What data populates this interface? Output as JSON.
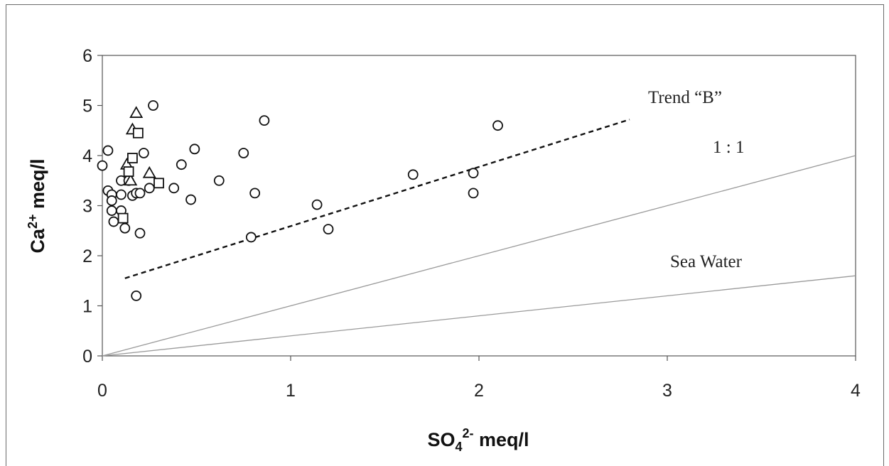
{
  "chart_data": {
    "type": "scatter",
    "xlabel": {
      "base": "SO",
      "sub": "4",
      "sup": "2-",
      "unit": " meq/l"
    },
    "ylabel": {
      "base": "Ca",
      "sup": "2+",
      "unit": " meq/l"
    },
    "xlim": [
      0,
      4
    ],
    "ylim": [
      0,
      6
    ],
    "x_ticks": [
      "0",
      "1",
      "2",
      "3",
      "4"
    ],
    "y_ticks": [
      "0",
      "1",
      "2",
      "3",
      "4",
      "5",
      "6"
    ],
    "grid": false,
    "series": [
      {
        "marker": "circle",
        "points": [
          [
            0.0,
            3.8
          ],
          [
            0.03,
            4.1
          ],
          [
            0.03,
            3.3
          ],
          [
            0.05,
            3.22
          ],
          [
            0.05,
            3.1
          ],
          [
            0.05,
            2.9
          ],
          [
            0.06,
            2.68
          ],
          [
            0.1,
            3.5
          ],
          [
            0.1,
            3.22
          ],
          [
            0.1,
            2.9
          ],
          [
            0.12,
            2.55
          ],
          [
            0.14,
            3.5
          ],
          [
            0.16,
            3.2
          ],
          [
            0.18,
            3.25
          ],
          [
            0.18,
            1.2
          ],
          [
            0.2,
            3.25
          ],
          [
            0.2,
            2.45
          ],
          [
            0.22,
            4.05
          ],
          [
            0.25,
            3.35
          ],
          [
            0.27,
            5.0
          ],
          [
            0.38,
            3.35
          ],
          [
            0.42,
            3.82
          ],
          [
            0.47,
            3.12
          ],
          [
            0.49,
            4.13
          ],
          [
            0.62,
            3.5
          ],
          [
            0.75,
            4.05
          ],
          [
            0.79,
            2.37
          ],
          [
            0.81,
            3.25
          ],
          [
            0.86,
            4.7
          ],
          [
            1.14,
            3.02
          ],
          [
            1.2,
            2.53
          ],
          [
            1.65,
            3.62
          ],
          [
            1.97,
            3.65
          ],
          [
            1.97,
            3.25
          ],
          [
            2.1,
            4.6
          ]
        ]
      },
      {
        "marker": "triangle",
        "points": [
          [
            0.18,
            4.85
          ],
          [
            0.16,
            4.52
          ],
          [
            0.13,
            3.82
          ],
          [
            0.25,
            3.65
          ],
          [
            0.15,
            3.5
          ]
        ]
      },
      {
        "marker": "square",
        "points": [
          [
            0.19,
            4.45
          ],
          [
            0.16,
            3.95
          ],
          [
            0.14,
            3.68
          ],
          [
            0.3,
            3.45
          ],
          [
            0.11,
            2.75
          ]
        ]
      }
    ],
    "lines": [
      {
        "name": "Trend “B”",
        "style": "dashed",
        "x": [
          0.12,
          2.8
        ],
        "y": [
          1.55,
          4.72
        ]
      },
      {
        "name": "1 : 1",
        "style": "solid",
        "x": [
          0,
          4
        ],
        "y": [
          0,
          4
        ]
      },
      {
        "name": "Sea Water",
        "style": "solid",
        "x": [
          0,
          4
        ],
        "y": [
          0,
          1.6
        ]
      }
    ]
  }
}
